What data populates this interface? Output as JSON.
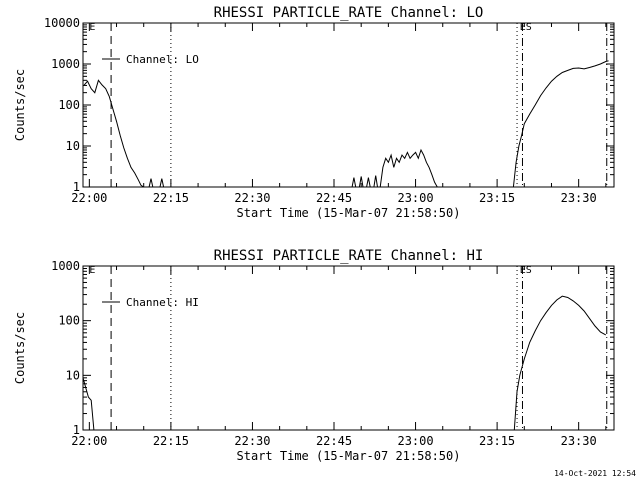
{
  "chart_data": [
    {
      "type": "line",
      "title": "RHESSI PARTICLE_RATE Channel: LO",
      "xlabel": "Start Time (15-Mar-07 21:58:50)",
      "ylabel": "Counts/sec",
      "yscale": "log",
      "ylim": [
        1,
        10000
      ],
      "xlim": [
        "21:58:50",
        "23:36:30"
      ],
      "x_ticks": [
        "22:00",
        "22:15",
        "22:30",
        "22:45",
        "23:00",
        "23:15",
        "23:30"
      ],
      "y_ticks": [
        "1",
        "10",
        "100",
        "1000",
        "10000"
      ],
      "legend": {
        "label": "Channel: LO",
        "placement": "top-left"
      },
      "series": [
        {
          "name": "Channel: LO",
          "segments": [
            {
              "x": [
                "21:59:00",
                "21:59:40",
                "22:00:20",
                "22:01:00",
                "22:01:40",
                "22:02:20",
                "22:03:00",
                "22:03:40",
                "22:04:20",
                "22:05:00",
                "22:05:40",
                "22:06:20",
                "22:07:00",
                "22:07:40",
                "22:08:20",
                "22:09:00",
                "22:09:30",
                "22:10:00"
              ],
              "y": [
                300,
                380,
                250,
                200,
                400,
                310,
                250,
                160,
                80,
                40,
                18,
                9,
                5,
                3,
                2.2,
                1.5,
                1.1,
                1
              ]
            },
            {
              "x": [
                "22:11:00",
                "22:11:20",
                "22:11:40"
              ],
              "y": [
                1,
                1.6,
                1
              ]
            },
            {
              "x": [
                "22:13:00",
                "22:13:20",
                "22:13:40"
              ],
              "y": [
                1,
                1.6,
                1
              ]
            },
            {
              "x": [
                "22:48:20",
                "22:48:40",
                "22:49:00"
              ],
              "y": [
                1,
                1.7,
                1
              ]
            },
            {
              "x": [
                "22:49:40",
                "22:50:00",
                "22:50:20"
              ],
              "y": [
                1,
                1.8,
                1
              ]
            },
            {
              "x": [
                "22:51:00",
                "22:51:20",
                "22:51:40"
              ],
              "y": [
                1,
                1.7,
                1
              ]
            },
            {
              "x": [
                "22:52:20",
                "22:52:40",
                "22:53:00"
              ],
              "y": [
                1,
                1.9,
                1
              ]
            },
            {
              "x": [
                "22:53:30",
                "22:54:00",
                "22:54:30",
                "22:55:00",
                "22:55:30",
                "22:56:00",
                "22:56:30",
                "22:57:00",
                "22:57:30",
                "22:58:00",
                "22:58:30",
                "22:59:00",
                "22:59:30",
                "23:00:00",
                "23:00:30",
                "23:01:00",
                "23:01:30",
                "23:02:00",
                "23:02:30",
                "23:03:00",
                "23:03:30",
                "23:04:00"
              ],
              "y": [
                1,
                3,
                5,
                4,
                6,
                3,
                5,
                4,
                6,
                5,
                7,
                5,
                6,
                7,
                5,
                8,
                6,
                4,
                3,
                2,
                1.3,
                1
              ]
            },
            {
              "x": [
                "23:18:00",
                "23:18:30",
                "23:19:00",
                "23:19:30",
                "23:20:00",
                "23:21:00",
                "23:22:00",
                "23:23:00",
                "23:24:00",
                "23:25:00",
                "23:26:00",
                "23:27:00",
                "23:28:00",
                "23:29:00",
                "23:30:00",
                "23:31:00",
                "23:32:00",
                "23:33:00",
                "23:34:00",
                "23:35:00",
                "23:35:30"
              ],
              "y": [
                1,
                4,
                10,
                18,
                35,
                60,
                100,
                170,
                260,
                380,
                500,
                620,
                700,
                780,
                800,
                760,
                820,
                900,
                1000,
                1150,
                1200
              ]
            }
          ]
        }
      ],
      "event_markers": [
        {
          "time": "22:04:00",
          "style": "dashed"
        },
        {
          "time": "22:15:00",
          "style": "dotted"
        },
        {
          "time": "23:18:40",
          "style": "dotted"
        },
        {
          "time": "23:19:40",
          "style": "dashdot"
        },
        {
          "time": "23:35:10",
          "style": "dashdot"
        }
      ],
      "corner_labels": [
        {
          "text": "E",
          "time": "22:00:00"
        },
        {
          "text": "ES",
          "time": "23:19:10"
        }
      ]
    },
    {
      "type": "line",
      "title": "RHESSI PARTICLE_RATE Channel: HI",
      "xlabel": "Start Time (15-Mar-07 21:58:50)",
      "ylabel": "Counts/sec",
      "yscale": "log",
      "ylim": [
        1,
        1000
      ],
      "xlim": [
        "21:58:50",
        "23:36:30"
      ],
      "x_ticks": [
        "22:00",
        "22:15",
        "22:30",
        "22:45",
        "23:00",
        "23:15",
        "23:30"
      ],
      "y_ticks": [
        "1",
        "10",
        "100",
        "1000"
      ],
      "legend": {
        "label": "Channel: HI",
        "placement": "top-left"
      },
      "series": [
        {
          "name": "Channel: HI",
          "segments": [
            {
              "x": [
                "21:58:50",
                "21:59:20",
                "21:59:50",
                "22:00:20",
                "22:00:50"
              ],
              "y": [
                9,
                6,
                4,
                3.5,
                1
              ]
            },
            {
              "x": [
                "23:18:10",
                "23:18:40",
                "23:19:10",
                "23:20:00",
                "23:21:00",
                "23:22:00",
                "23:23:00",
                "23:24:00",
                "23:25:00",
                "23:26:00",
                "23:27:00",
                "23:28:00",
                "23:29:00",
                "23:30:00",
                "23:31:00",
                "23:32:00",
                "23:33:00",
                "23:34:00",
                "23:35:00"
              ],
              "y": [
                1,
                5,
                10,
                20,
                40,
                65,
                100,
                140,
                190,
                240,
                280,
                265,
                230,
                190,
                150,
                110,
                80,
                62,
                55
              ]
            }
          ]
        }
      ],
      "event_markers": [
        {
          "time": "22:04:00",
          "style": "dashed"
        },
        {
          "time": "22:15:00",
          "style": "dotted"
        },
        {
          "time": "23:18:40",
          "style": "dotted"
        },
        {
          "time": "23:19:40",
          "style": "dashdot"
        },
        {
          "time": "23:35:10",
          "style": "dashdot"
        }
      ],
      "corner_labels": [
        {
          "text": "E",
          "time": "22:00:00"
        },
        {
          "text": "ES",
          "time": "23:19:10"
        }
      ]
    }
  ],
  "footer": {
    "timestamp": "14-Oct-2021 12:54"
  }
}
